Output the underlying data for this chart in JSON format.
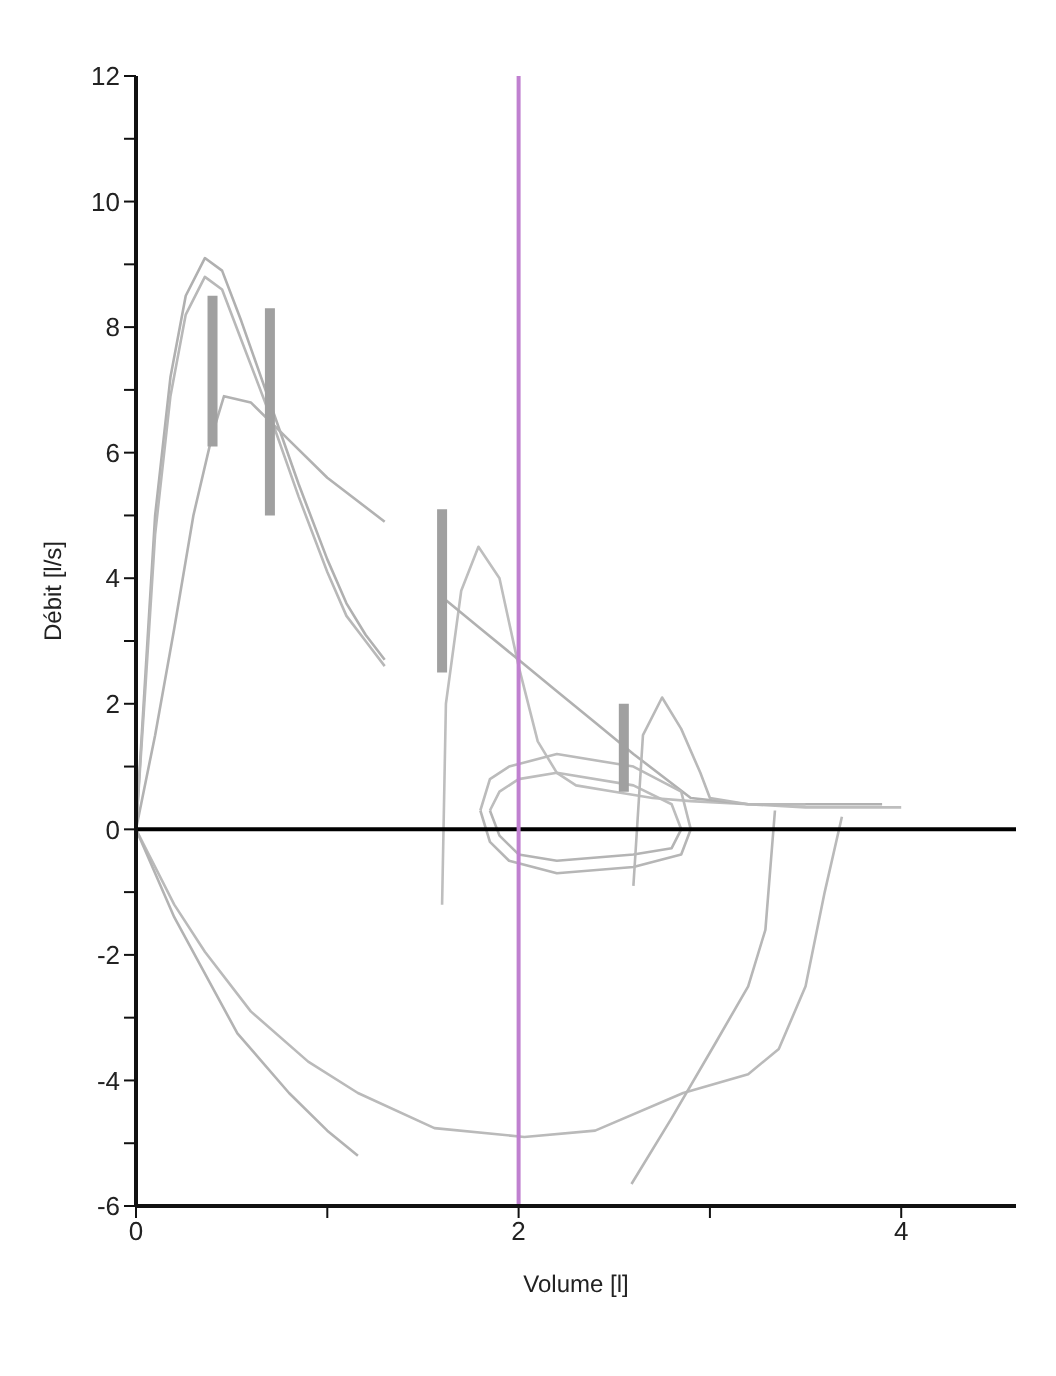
{
  "chart_data": {
    "type": "line",
    "xlabel": "Volume [l]",
    "ylabel": "Débit [l/s]",
    "xlim": [
      0,
      4.6
    ],
    "ylim": [
      -6,
      12
    ],
    "xticks": [
      0,
      {
        "value": 1,
        "label": null
      },
      2,
      {
        "value": 3,
        "label": null
      },
      4
    ],
    "yticks": [
      -6,
      {
        "value": -5,
        "label": null
      },
      -4,
      {
        "value": -3,
        "label": null
      },
      -2,
      {
        "value": -1,
        "label": null
      },
      0,
      {
        "value": 1,
        "label": null
      },
      2,
      {
        "value": 3,
        "label": null
      },
      4,
      {
        "value": 5,
        "label": null
      },
      6,
      {
        "value": 7,
        "label": null
      },
      8,
      {
        "value": 9,
        "label": null
      },
      10,
      {
        "value": 11,
        "label": null
      },
      12
    ],
    "grid": false,
    "marker": "none",
    "line_style": "solid",
    "series": [
      {
        "color": "#b0b0b0",
        "x": [
          0,
          0.05,
          0.1,
          0.18,
          0.26,
          0.36,
          0.45,
          0.55,
          0.7,
          0.85,
          1.0,
          1.1,
          1.2,
          1.3
        ],
        "values": [
          0,
          2.5,
          5,
          7.2,
          8.5,
          9.1,
          8.9,
          8.1,
          6.8,
          5.5,
          4.3,
          3.6,
          3.1,
          2.7
        ]
      },
      {
        "color": "#b8b8b8",
        "x": [
          0,
          0.05,
          0.1,
          0.18,
          0.26,
          0.36,
          0.45,
          0.55,
          0.7,
          0.85,
          1.0,
          1.1,
          1.2,
          1.3
        ],
        "values": [
          0,
          2.3,
          4.7,
          6.9,
          8.2,
          8.8,
          8.6,
          7.8,
          6.6,
          5.3,
          4.1,
          3.4,
          3.0,
          2.6
        ]
      },
      {
        "color": "#b2b2b2",
        "x": [
          0,
          0.1,
          0.2,
          0.3,
          0.4,
          0.46,
          0.6,
          0.8,
          1.0,
          1.3
        ],
        "values": [
          0,
          1.5,
          3.2,
          5.0,
          6.3,
          6.9,
          6.8,
          6.2,
          5.6,
          4.9
        ]
      },
      {
        "color": "#bebebe",
        "x": [
          1.6,
          1.62,
          1.7,
          1.79,
          1.9,
          2.0,
          2.1,
          2.2,
          2.3,
          2.5,
          2.7,
          2.9,
          3.2,
          3.5,
          4.0
        ],
        "values": [
          -1.2,
          2.0,
          3.8,
          4.5,
          4.0,
          2.6,
          1.4,
          0.9,
          0.7,
          0.6,
          0.5,
          0.45,
          0.4,
          0.35,
          0.35
        ]
      },
      {
        "color": "#b1b1b1",
        "x": [
          1.6,
          1.8,
          2.0,
          2.2,
          2.4,
          2.6,
          2.9,
          3.2,
          3.5,
          3.9
        ],
        "values": [
          3.7,
          3.2,
          2.7,
          2.2,
          1.7,
          1.2,
          0.5,
          0.4,
          0.4,
          0.4
        ]
      },
      {
        "color": "#bbbbbb",
        "x": [
          1.8,
          1.85,
          1.95,
          2.2,
          2.6,
          2.85,
          2.9
        ],
        "values": [
          0.3,
          0.8,
          1.0,
          1.2,
          1.0,
          0.6,
          0.0
        ]
      },
      {
        "color": "#b6b6b6",
        "x": [
          1.8,
          1.85,
          1.95,
          2.2,
          2.6,
          2.85,
          2.9
        ],
        "values": [
          0.3,
          -0.2,
          -0.5,
          -0.7,
          -0.6,
          -0.4,
          0.0
        ]
      },
      {
        "color": "#bdbdbd",
        "x": [
          1.85,
          1.9,
          2.0,
          2.2,
          2.6,
          2.8,
          2.85
        ],
        "values": [
          0.3,
          0.6,
          0.8,
          0.9,
          0.7,
          0.4,
          0.0
        ]
      },
      {
        "color": "#b4b4b4",
        "x": [
          1.85,
          1.9,
          2.0,
          2.2,
          2.6,
          2.8,
          2.85
        ],
        "values": [
          0.3,
          -0.1,
          -0.4,
          -0.5,
          -0.4,
          -0.3,
          0.0
        ]
      },
      {
        "color": "#b9b9b9",
        "x": [
          2.6,
          2.65,
          2.75,
          2.85,
          2.95,
          3.0,
          3.2,
          3.5
        ],
        "values": [
          -0.9,
          1.5,
          2.1,
          1.6,
          0.9,
          0.5,
          0.4,
          0.4
        ]
      },
      {
        "color": "#bababa",
        "x": [
          0,
          0.2,
          0.36,
          0.6,
          0.9,
          1.16,
          1.56,
          2.03,
          2.4,
          2.86,
          3.2,
          3.36,
          3.5,
          3.6,
          3.69
        ],
        "values": [
          0,
          -1.2,
          -1.95,
          -2.9,
          -3.7,
          -4.2,
          -4.76,
          -4.9,
          -4.8,
          -4.2,
          -3.9,
          -3.5,
          -2.5,
          -1.0,
          0.2
        ]
      },
      {
        "color": "#b3b3b3",
        "x": [
          0,
          0.2,
          0.53,
          0.8,
          1.0,
          1.16
        ],
        "values": [
          0,
          -1.4,
          -3.25,
          -4.2,
          -4.8,
          -5.2
        ]
      },
      {
        "color": "#b7b7b7",
        "x": [
          2.59,
          2.8,
          3.03,
          3.2,
          3.29,
          3.34
        ],
        "values": [
          -5.65,
          -4.6,
          -3.4,
          -2.5,
          -1.6,
          0.3
        ]
      },
      {
        "color": "#a0a0a0",
        "x": [
          0.4,
          0.4,
          null,
          0.7,
          0.7,
          null,
          1.6,
          1.6,
          null,
          2.55,
          2.55
        ],
        "values": [
          6.1,
          8.5,
          null,
          5.0,
          8.3,
          null,
          2.5,
          5.1,
          null,
          0.6,
          2.0
        ]
      }
    ],
    "ref_lines": [
      {
        "axis": "y",
        "value": 0,
        "color": "#000000"
      },
      {
        "axis": "x",
        "value": 2,
        "color": "#c080d0"
      }
    ]
  }
}
